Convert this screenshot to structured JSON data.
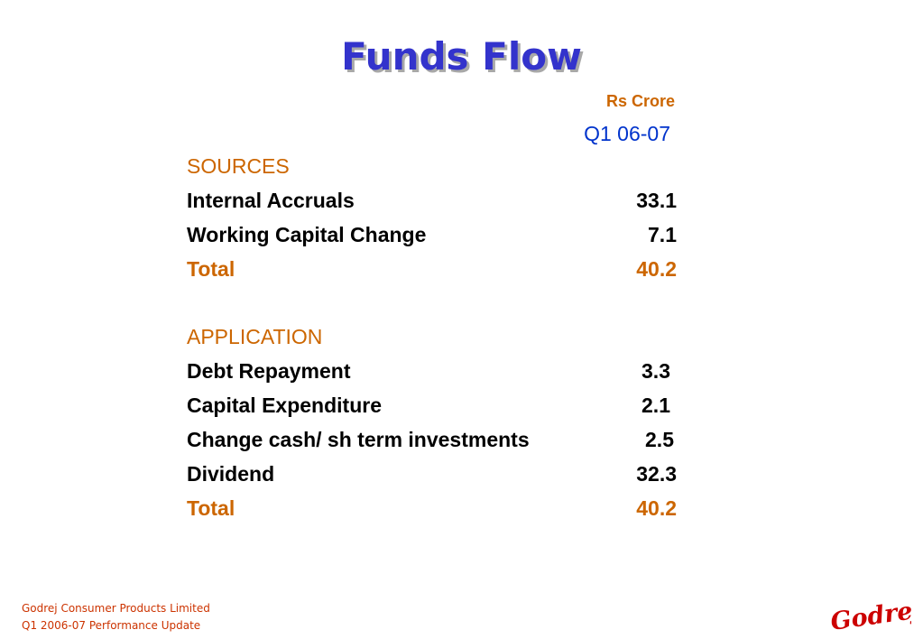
{
  "title": "Funds Flow",
  "unit": "Rs Crore",
  "period": "Q1 06-07",
  "sources": {
    "heading": "SOURCES",
    "items": [
      {
        "label": "Internal Accruals",
        "value": "33.1"
      },
      {
        "label": "Working Capital Change",
        "value": "7.1"
      }
    ],
    "total": {
      "label": "Total",
      "value": "40.2"
    }
  },
  "application": {
    "heading": "APPLICATION",
    "items": [
      {
        "label": "Debt Repayment",
        "value": "3.3"
      },
      {
        "label": "Capital Expenditure",
        "value": "2.1"
      },
      {
        "label": "Change cash/ sh term investments",
        "value": "2.5"
      },
      {
        "label": "Dividend",
        "value": "32.3"
      }
    ],
    "total": {
      "label": "Total",
      "value": "40.2"
    }
  },
  "footer": {
    "company": "Godrej Consumer Products Limited",
    "update": "Q1 2006-07 Performance Update"
  },
  "logo": {
    "text": "Godrej",
    "color": "#cc0000"
  }
}
